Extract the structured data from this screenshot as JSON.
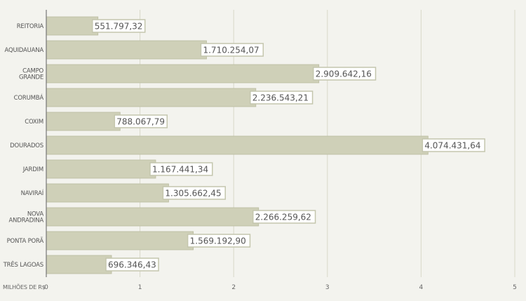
{
  "chart_data": {
    "type": "bar",
    "orientation": "horizontal",
    "categories": [
      [
        "REITORIA"
      ],
      [
        "AQUIDAUANA"
      ],
      [
        "CAMPO",
        "GRANDE"
      ],
      [
        "CORUMBÁ"
      ],
      [
        "COXIM"
      ],
      [
        "DOURADOS"
      ],
      [
        "JARDIM"
      ],
      [
        "NAVIRAÍ"
      ],
      [
        "NOVA",
        "ANDRADINA"
      ],
      [
        "PONTA PORÃ"
      ],
      [
        "TRÊS LAGOAS"
      ]
    ],
    "values": [
      0.55179732,
      1.71025407,
      2.90964216,
      2.23654321,
      0.78806779,
      4.07443164,
      1.16744134,
      1.30566245,
      2.26625962,
      1.5691929,
      0.69634643
    ],
    "value_labels": [
      "551.797,32",
      "1.710.254,07",
      "2.909.642,16",
      "2.236.543,21",
      "788.067,79",
      "4.074.431,64",
      "1.167.441,34",
      "1.305.662,45",
      "2.266.259,62",
      "1.569.192,90",
      "696.346,43"
    ],
    "x_ticks": [
      "0",
      "1",
      "2",
      "3",
      "4",
      "5"
    ],
    "xlim": [
      0,
      5
    ],
    "xlabel": "MILHÕES DE R$",
    "grid": true,
    "colors": {
      "bar": "#cfd0b8",
      "bar_edge": "#b9bb9f",
      "grid": "#d8d8c8",
      "axis": "#777777",
      "label_box_border": "#c4c6ad",
      "label_box_fill": "#ffffff"
    }
  }
}
